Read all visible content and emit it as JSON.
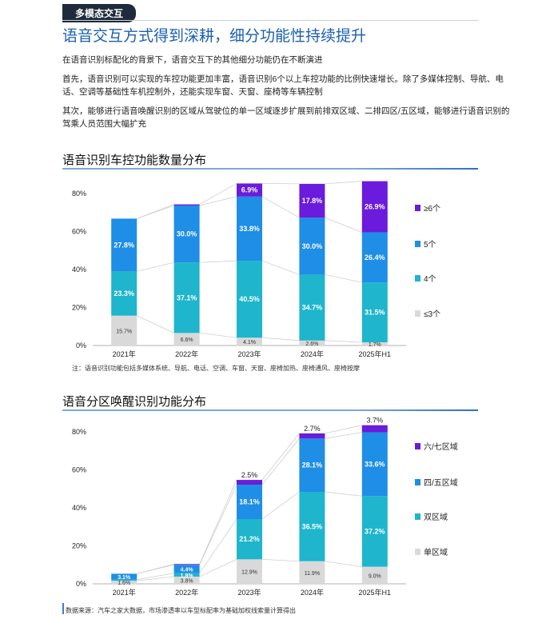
{
  "header": {
    "tag": "多模态交互",
    "headline": "语音交互方式得到深耕，细分功能性持续提升"
  },
  "paragraphs": [
    "在语音识别标配化的背景下，语音交互下的其他细分功能仍在不断演进",
    "首先，语音识别可以实现的车控功能更加丰富，语音识别6个以上车控功能的比例快速增长。除了多媒体控制、导航、电话、空调等基础性车机控制外，还能实现车窗、天窗、座椅等车辆控制",
    "其次，能够进行语音唤醒识别的区域从驾驶位的单一区域逐步扩展到前排双区域、二排四区/五区域，能够进行语音识别的驾乘人员范围大幅扩充"
  ],
  "colors": {
    "s_dark": "#6a1bdc",
    "s_blue": "#1e8ee6",
    "s_teal": "#1fb5cc",
    "s_gray": "#d9d9d9",
    "connector": "#cfcfcf"
  },
  "chart_data": [
    {
      "type": "bar",
      "title": "语音识别车控功能数量分布",
      "categories": [
        "2021年",
        "2022年",
        "2023年",
        "2024年",
        "2025年H1"
      ],
      "ylim": [
        0,
        80
      ],
      "yticks": [
        "0%",
        "20%",
        "40%",
        "60%",
        "80%"
      ],
      "stacked": true,
      "series": [
        {
          "name": "≤3个",
          "values": [
            15.7,
            6.6,
            4.1,
            2.6,
            1.7
          ],
          "labels": [
            "15.7%",
            "6.6%",
            "4.1%",
            "2.6%",
            "1.7%"
          ]
        },
        {
          "name": "4个",
          "values": [
            23.3,
            37.1,
            40.5,
            34.7,
            31.5
          ],
          "labels": [
            "23.3%",
            "37.1%",
            "40.5%",
            "34.7%",
            "31.5%"
          ]
        },
        {
          "name": "5个",
          "values": [
            27.8,
            30.0,
            33.8,
            30.0,
            26.4
          ],
          "labels": [
            "27.8%",
            "30.0%",
            "33.8%",
            "30.0%",
            "26.4%"
          ]
        },
        {
          "name": "≥6个",
          "values": [
            0,
            0.6,
            6.9,
            17.8,
            26.9
          ],
          "labels": [
            "",
            "",
            "6.9%",
            "17.8%",
            "26.9%"
          ]
        }
      ],
      "legend": "right",
      "note": "注：语音识别功能包括多媒体系统、导航、电话、空调、车窗、天窗、座椅加热、座椅通风、座椅按摩"
    },
    {
      "type": "bar",
      "title": "语音分区唤醒识别功能分布",
      "categories": [
        "2021年",
        "2022年",
        "2023年",
        "2024年",
        "2025年H1"
      ],
      "ylim": [
        0,
        80
      ],
      "yticks": [
        "0%",
        "20%",
        "40%",
        "60%",
        "80%"
      ],
      "stacked": true,
      "series": [
        {
          "name": "单区域",
          "values": [
            1.6,
            3.8,
            12.9,
            11.9,
            9.0
          ],
          "labels": [
            "1.6%",
            "3.8%",
            "12.9%",
            "11.9%",
            "9.0%"
          ]
        },
        {
          "name": "双区域",
          "values": [
            0.6,
            1.8,
            21.2,
            36.5,
            37.2
          ],
          "labels": [
            "",
            "1.8%",
            "21.2%",
            "36.5%",
            "37.2%"
          ]
        },
        {
          "name": "四/五区域",
          "values": [
            3.1,
            4.4,
            18.1,
            28.1,
            33.6
          ],
          "labels": [
            "3.1%",
            "4.4%",
            "18.1%",
            "28.1%",
            "33.6%"
          ]
        },
        {
          "name": "六/七区域",
          "values": [
            0,
            0.4,
            2.5,
            2.7,
            3.7
          ],
          "labels": [
            "",
            "",
            "2.5%",
            "2.7%",
            "3.7%"
          ]
        }
      ],
      "legend": "right"
    }
  ],
  "source": "数据来源：汽车之家大数据，市场渗透率以车型标配率为基础加权线索量计算得出"
}
